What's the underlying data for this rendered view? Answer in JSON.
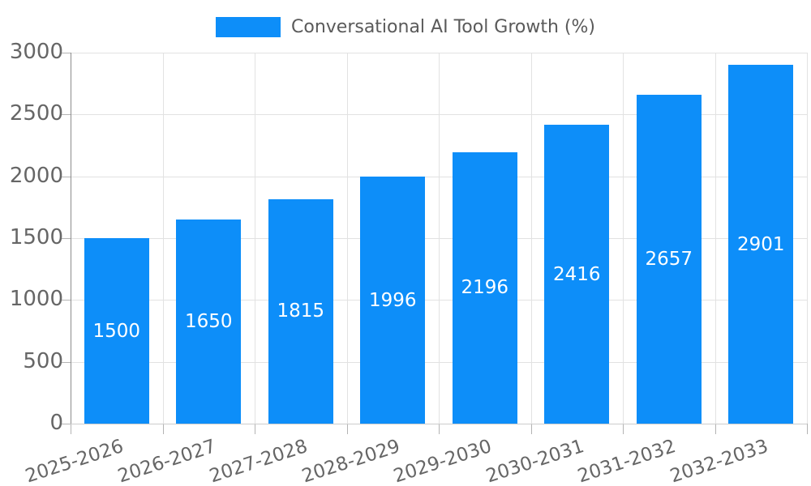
{
  "legend": {
    "label": "Conversational AI Tool Growth (%)"
  },
  "chart_data": {
    "type": "bar",
    "title": "Conversational AI Tool Growth (%)",
    "series": [
      {
        "name": "Conversational AI Tool Growth (%)",
        "values": [
          1500,
          1650,
          1815,
          1996,
          2196,
          2416,
          2657,
          2901
        ]
      }
    ],
    "categories": [
      "2025-2026",
      "2026-2027",
      "2027-2028",
      "2028-2029",
      "2029-2030",
      "2030-2031",
      "2031-2032",
      "2032-2033"
    ],
    "value_labels": [
      "1500",
      "1650",
      "1815",
      "1996",
      "2196",
      "2416",
      "2657",
      "2901"
    ],
    "xlabel": "",
    "ylabel": "",
    "ylim": [
      0,
      3000
    ],
    "yticks": [
      0,
      500,
      1000,
      1500,
      2000,
      2500,
      3000
    ],
    "grid": true,
    "legend_position": "top-center",
    "value_label_position": "inside-middle",
    "x_label_rotation_deg": -18,
    "colors": {
      "bar": "#0d8ef9",
      "value_label": "#ffffff",
      "tick_label": "#666666",
      "legend_label": "#5a5a5a",
      "gridline": "#e2e2e2",
      "y_axis_line": "#8c8c8c",
      "x_axis_line": "#cccccc",
      "tick_mark": "#b3b3b3",
      "background": "#ffffff"
    }
  }
}
